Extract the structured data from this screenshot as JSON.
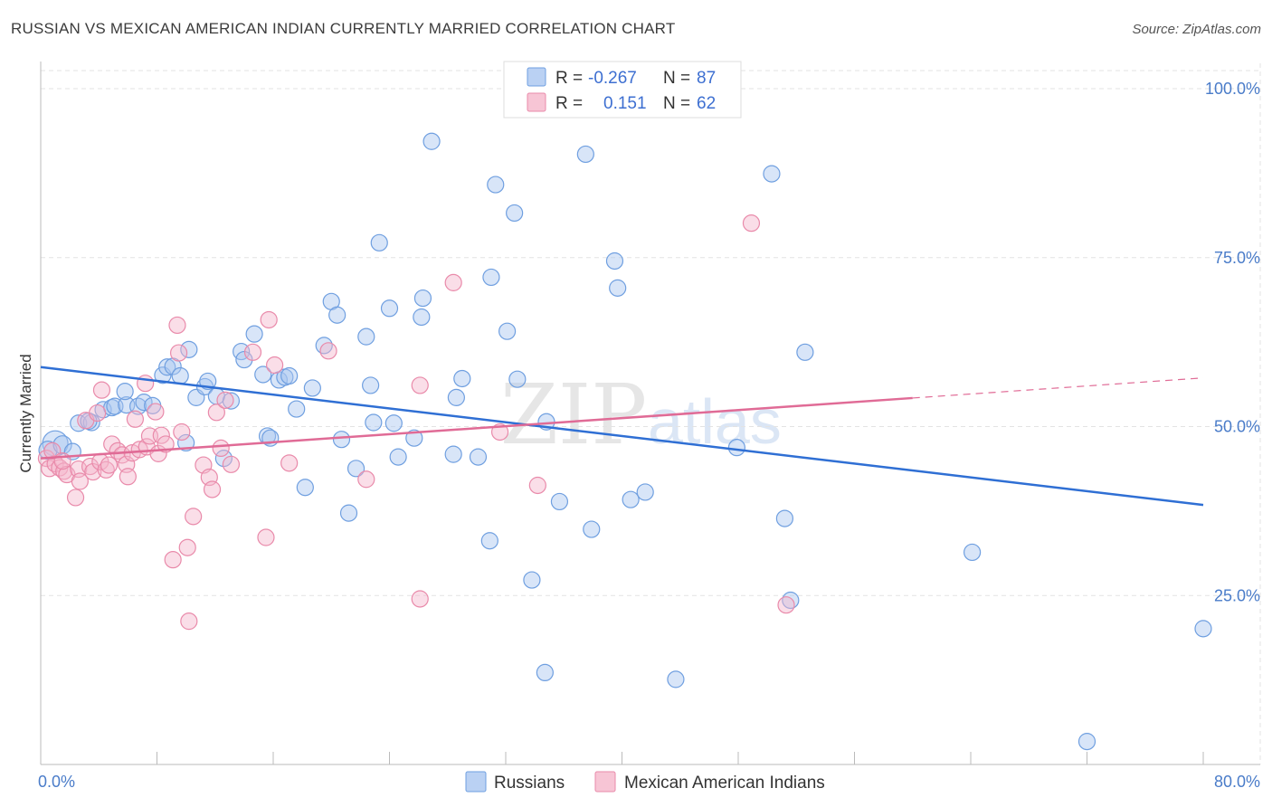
{
  "title": "RUSSIAN VS MEXICAN AMERICAN INDIAN CURRENTLY MARRIED CORRELATION CHART",
  "source": "Source: ZipAtlas.com",
  "watermark": {
    "zip": "ZIP",
    "atlas": "atlas"
  },
  "legend": {
    "rows": [
      {
        "r_label": "R =",
        "r_value": "-0.267",
        "n_label": "N =",
        "n_value": "87",
        "color": "#a9c6f0"
      },
      {
        "r_label": "R =",
        "r_value": "0.151",
        "n_label": "N =",
        "n_value": "62",
        "color": "#f5b6cb"
      }
    ]
  },
  "bottom_legend": [
    {
      "label": "Russians",
      "color": "#a9c6f0"
    },
    {
      "label": "Mexican American Indians",
      "color": "#f5b6cb"
    }
  ],
  "chart_data": {
    "type": "scatter",
    "ylabel": "Currently Married",
    "xlim": [
      0,
      80
    ],
    "ylim": [
      2,
      102
    ],
    "y_ticks": [
      {
        "value": 25,
        "label": "25.0%"
      },
      {
        "value": 50,
        "label": "50.0%"
      },
      {
        "value": 75,
        "label": "75.0%"
      },
      {
        "value": 100,
        "label": "100.0%"
      }
    ],
    "x_tick_labels": [
      {
        "value": 0,
        "label": "0.0%"
      },
      {
        "value": 80,
        "label": "80.0%"
      }
    ],
    "x_minor_ticks": [
      8,
      16,
      24,
      32,
      40,
      48,
      56,
      64,
      72,
      80
    ],
    "grid": true,
    "legend_position": "top-center",
    "series": [
      {
        "name": "Russians",
        "color": "#a9c6f0",
        "stroke": "#6f9fe0",
        "trend": {
          "x": [
            0,
            80
          ],
          "y": [
            58.8,
            38.4
          ],
          "color": "#2f6fd4",
          "dashed_from": null
        },
        "points": [
          [
            1.0,
            47.5,
            14
          ],
          [
            0.5,
            46.5,
            10
          ],
          [
            1.5,
            47.3,
            10
          ],
          [
            2.2,
            46.3,
            9
          ],
          [
            2.6,
            50.5,
            9
          ],
          [
            3.5,
            50.6,
            9
          ],
          [
            3.3,
            50.8,
            9
          ],
          [
            4.3,
            52.5,
            9
          ],
          [
            4.9,
            52.8,
            9
          ],
          [
            5.1,
            53.0,
            9
          ],
          [
            5.9,
            53.2,
            9
          ],
          [
            5.8,
            55.2,
            9
          ],
          [
            6.7,
            53.0,
            9
          ],
          [
            7.1,
            53.6,
            9
          ],
          [
            7.7,
            53.1,
            9
          ],
          [
            8.4,
            57.6,
            9
          ],
          [
            8.7,
            58.8,
            9
          ],
          [
            9.1,
            58.9,
            9
          ],
          [
            9.6,
            57.5,
            9
          ],
          [
            10.2,
            61.4,
            9
          ],
          [
            10.7,
            54.3,
            9
          ],
          [
            11.3,
            55.9,
            9
          ],
          [
            11.5,
            56.7,
            9
          ],
          [
            12.1,
            54.5,
            9
          ],
          [
            13.1,
            53.8,
            9
          ],
          [
            10.0,
            47.6,
            9
          ],
          [
            12.6,
            45.3,
            9
          ],
          [
            13.8,
            61.1,
            9
          ],
          [
            14.0,
            59.9,
            9
          ],
          [
            14.7,
            63.7,
            9
          ],
          [
            15.3,
            57.7,
            9
          ],
          [
            15.6,
            48.6,
            9
          ],
          [
            15.8,
            48.3,
            9
          ],
          [
            16.4,
            56.9,
            9
          ],
          [
            16.8,
            57.3,
            9
          ],
          [
            17.1,
            57.5,
            9
          ],
          [
            17.6,
            52.6,
            9
          ],
          [
            18.2,
            41.0,
            9
          ],
          [
            18.7,
            55.7,
            9
          ],
          [
            19.5,
            62.0,
            9
          ],
          [
            20.0,
            68.5,
            9
          ],
          [
            20.4,
            66.5,
            9
          ],
          [
            20.7,
            48.1,
            9
          ],
          [
            21.2,
            37.2,
            9
          ],
          [
            21.7,
            43.8,
            9
          ],
          [
            22.4,
            63.3,
            9
          ],
          [
            22.7,
            56.1,
            9
          ],
          [
            22.9,
            50.6,
            9
          ],
          [
            23.3,
            77.2,
            9
          ],
          [
            24.0,
            67.5,
            9
          ],
          [
            24.3,
            50.5,
            9
          ],
          [
            24.6,
            45.5,
            9
          ],
          [
            25.7,
            48.3,
            9
          ],
          [
            26.2,
            66.2,
            9
          ],
          [
            26.3,
            69.0,
            9
          ],
          [
            26.9,
            92.2,
            9
          ],
          [
            28.4,
            45.9,
            9
          ],
          [
            28.6,
            54.3,
            9
          ],
          [
            29.0,
            57.1,
            9
          ],
          [
            30.1,
            45.5,
            9
          ],
          [
            31.0,
            72.1,
            9
          ],
          [
            30.9,
            33.1,
            9
          ],
          [
            31.3,
            85.8,
            9
          ],
          [
            32.1,
            64.1,
            9
          ],
          [
            32.6,
            81.6,
            9
          ],
          [
            32.8,
            57.0,
            9
          ],
          [
            33.8,
            27.3,
            9
          ],
          [
            34.8,
            50.7,
            9
          ],
          [
            34.7,
            13.6,
            9
          ],
          [
            35.7,
            38.9,
            9
          ],
          [
            37.5,
            90.3,
            9
          ],
          [
            37.9,
            34.8,
            9
          ],
          [
            39.5,
            74.5,
            9
          ],
          [
            39.7,
            70.5,
            9
          ],
          [
            40.6,
            39.2,
            9
          ],
          [
            41.6,
            40.3,
            9
          ],
          [
            43.7,
            12.6,
            9
          ],
          [
            47.9,
            46.9,
            9
          ],
          [
            50.3,
            87.4,
            9
          ],
          [
            51.2,
            36.4,
            9
          ],
          [
            51.6,
            24.3,
            9
          ],
          [
            52.6,
            61.0,
            9
          ],
          [
            64.1,
            31.4,
            9
          ],
          [
            72.0,
            3.4,
            9
          ],
          [
            80.0,
            20.1,
            9
          ]
        ]
      },
      {
        "name": "Mexican American Indians",
        "color": "#f5b6cb",
        "stroke": "#e98aaa",
        "trend": {
          "x": [
            0,
            80
          ],
          "y": [
            45.3,
            57.2
          ],
          "color": "#e06b96",
          "dashed_from": 60
        },
        "points": [
          [
            0.4,
            45.3,
            9
          ],
          [
            0.6,
            43.8,
            9
          ],
          [
            1.0,
            44.5,
            9
          ],
          [
            1.3,
            43.9,
            9
          ],
          [
            1.6,
            43.4,
            9
          ],
          [
            1.8,
            42.9,
            9
          ],
          [
            2.4,
            39.5,
            9
          ],
          [
            2.6,
            43.7,
            9
          ],
          [
            2.7,
            41.9,
            9
          ],
          [
            3.1,
            50.9,
            9
          ],
          [
            3.4,
            44.1,
            9
          ],
          [
            3.6,
            43.3,
            9
          ],
          [
            3.9,
            52.0,
            9
          ],
          [
            4.1,
            44.8,
            9
          ],
          [
            4.2,
            55.4,
            9
          ],
          [
            4.5,
            43.6,
            9
          ],
          [
            4.7,
            44.3,
            9
          ],
          [
            4.9,
            47.4,
            9
          ],
          [
            5.3,
            46.4,
            9
          ],
          [
            5.6,
            45.8,
            9
          ],
          [
            5.9,
            44.4,
            9
          ],
          [
            6.0,
            42.6,
            9
          ],
          [
            6.3,
            46.1,
            9
          ],
          [
            6.5,
            51.1,
            9
          ],
          [
            6.8,
            46.6,
            9
          ],
          [
            7.2,
            56.4,
            9
          ],
          [
            7.3,
            47.0,
            9
          ],
          [
            7.5,
            48.6,
            9
          ],
          [
            7.9,
            52.2,
            9
          ],
          [
            8.1,
            46.0,
            9
          ],
          [
            8.3,
            48.7,
            9
          ],
          [
            8.6,
            47.4,
            9
          ],
          [
            9.1,
            30.3,
            9
          ],
          [
            9.4,
            65.0,
            9
          ],
          [
            9.5,
            60.9,
            9
          ],
          [
            9.7,
            49.2,
            9
          ],
          [
            10.1,
            32.1,
            9
          ],
          [
            10.2,
            21.2,
            9
          ],
          [
            10.5,
            36.7,
            9
          ],
          [
            11.2,
            44.3,
            9
          ],
          [
            11.6,
            42.5,
            9
          ],
          [
            11.8,
            40.7,
            9
          ],
          [
            12.1,
            52.1,
            9
          ],
          [
            12.4,
            46.8,
            9
          ],
          [
            12.7,
            53.9,
            9
          ],
          [
            13.1,
            44.4,
            9
          ],
          [
            14.6,
            61.0,
            9
          ],
          [
            15.5,
            33.6,
            9
          ],
          [
            15.7,
            65.8,
            9
          ],
          [
            16.1,
            59.1,
            9
          ],
          [
            17.1,
            44.6,
            9
          ],
          [
            19.8,
            61.2,
            9
          ],
          [
            22.4,
            42.2,
            9
          ],
          [
            26.1,
            56.1,
            9
          ],
          [
            26.1,
            24.5,
            9
          ],
          [
            28.4,
            71.3,
            9
          ],
          [
            31.6,
            49.2,
            9
          ],
          [
            34.2,
            41.3,
            9
          ],
          [
            48.9,
            80.1,
            9
          ],
          [
            51.3,
            23.6,
            9
          ],
          [
            0.8,
            46.4,
            9
          ],
          [
            1.5,
            44.9,
            9
          ]
        ]
      }
    ]
  }
}
